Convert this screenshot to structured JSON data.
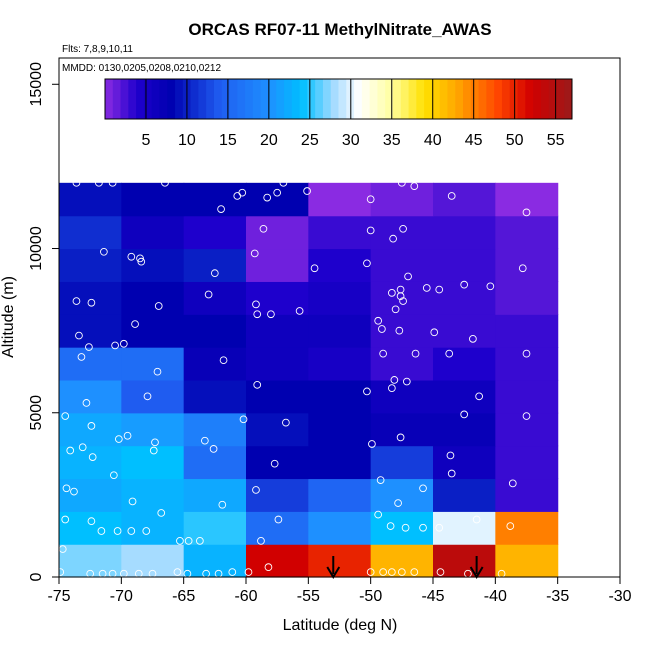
{
  "chart_data": {
    "type": "heatmap",
    "title": "ORCAS RF07-11 MethylNitrate_AWAS",
    "subtitle_flights": "Flts: 7,8,9,10,11",
    "subtitle_dates": "MMDD: 0130,0205,0208,0210,0212",
    "xlabel": "Latitude (deg N)",
    "ylabel": "Altitude (m)",
    "xlim": [
      -75,
      -30
    ],
    "ylim": [
      0,
      15800
    ],
    "x_ticks": [
      -75,
      -70,
      -65,
      -60,
      -55,
      -50,
      -45,
      -40,
      -35,
      -30
    ],
    "y_ticks": [
      0,
      5000,
      10000,
      15000
    ],
    "x_bin_edges": [
      -75,
      -70,
      -65,
      -60,
      -55,
      -50,
      -45,
      -40,
      -35
    ],
    "y_bin_edges": [
      0,
      1000,
      2000,
      3000,
      4000,
      5000,
      6000,
      7000,
      8000,
      9000,
      10000,
      11000,
      12000
    ],
    "colorbar": {
      "min": 0,
      "max": 57,
      "ticks": [
        5,
        10,
        15,
        20,
        25,
        30,
        35,
        40,
        45,
        50,
        55
      ],
      "stops": [
        {
          "v": 0,
          "c": "#8a2be2"
        },
        {
          "v": 4,
          "c": "#1e00cc"
        },
        {
          "v": 8,
          "c": "#0000b0"
        },
        {
          "v": 14,
          "c": "#1f5cf0"
        },
        {
          "v": 20,
          "c": "#1e90ff"
        },
        {
          "v": 24,
          "c": "#00bfff"
        },
        {
          "v": 28,
          "c": "#a6dcff"
        },
        {
          "v": 31,
          "c": "#ffffff"
        },
        {
          "v": 35,
          "c": "#ffffa0"
        },
        {
          "v": 39,
          "c": "#ffe000"
        },
        {
          "v": 43,
          "c": "#ffa500"
        },
        {
          "v": 48,
          "c": "#ff4500"
        },
        {
          "v": 52,
          "c": "#d10000"
        },
        {
          "v": 57,
          "c": "#9b1b1b"
        }
      ]
    },
    "grid_values": [
      [
        27,
        28,
        23,
        52,
        50,
        42,
        54,
        42
      ],
      [
        24,
        23,
        25,
        16,
        20,
        24,
        30,
        45
      ],
      [
        22,
        23,
        22,
        12,
        15,
        20,
        10,
        3
      ],
      [
        23,
        24,
        16,
        8,
        8,
        12,
        6,
        3
      ],
      [
        22,
        21,
        18,
        9,
        8,
        7,
        7,
        3
      ],
      [
        20,
        14,
        9,
        8,
        8,
        6,
        6,
        3
      ],
      [
        16,
        16,
        7,
        6,
        5,
        3,
        4,
        3
      ],
      [
        9,
        8,
        8,
        6,
        6,
        3,
        3,
        3
      ],
      [
        9,
        8,
        6,
        4,
        5,
        3,
        3,
        2
      ],
      [
        10,
        9,
        10,
        1,
        4,
        3,
        3,
        2
      ],
      [
        11,
        6,
        4,
        1,
        3,
        3,
        3,
        2
      ],
      [
        9,
        8,
        8,
        8,
        0,
        1,
        2,
        0
      ]
    ],
    "samples": [
      [
        -74.9,
        150
      ],
      [
        -74.7,
        850
      ],
      [
        -74.5,
        1750
      ],
      [
        -74.4,
        2700
      ],
      [
        -74.1,
        3850
      ],
      [
        -74.5,
        4900
      ],
      [
        -72.5,
        100
      ],
      [
        -71.5,
        100
      ],
      [
        -70.7,
        100
      ],
      [
        -69.8,
        100
      ],
      [
        -68.6,
        100
      ],
      [
        -67.5,
        100
      ],
      [
        -65.5,
        150
      ],
      [
        -64.7,
        100
      ],
      [
        -63.2,
        100
      ],
      [
        -62.2,
        100
      ],
      [
        -61.1,
        150
      ],
      [
        -59.8,
        150
      ],
      [
        -58.2,
        300
      ],
      [
        -50.0,
        150
      ],
      [
        -49.0,
        150
      ],
      [
        -48.3,
        150
      ],
      [
        -47.5,
        150
      ],
      [
        -46.5,
        150
      ],
      [
        -44.4,
        150
      ],
      [
        -42.2,
        100
      ],
      [
        -39.5,
        100
      ],
      [
        -72.4,
        1700
      ],
      [
        -71.6,
        1400
      ],
      [
        -70.3,
        1400
      ],
      [
        -69.2,
        1400
      ],
      [
        -68.0,
        1400
      ],
      [
        -66.8,
        1950
      ],
      [
        -65.3,
        1100
      ],
      [
        -64.6,
        1100
      ],
      [
        -63.7,
        1100
      ],
      [
        -61.9,
        2200
      ],
      [
        -58.8,
        1100
      ],
      [
        -57.4,
        1750
      ],
      [
        -49.4,
        1900
      ],
      [
        -48.4,
        1550
      ],
      [
        -47.2,
        1500
      ],
      [
        -45.8,
        1500
      ],
      [
        -44.5,
        1500
      ],
      [
        -41.5,
        1750
      ],
      [
        -38.8,
        1550
      ],
      [
        -73.8,
        2600
      ],
      [
        -72.3,
        3650
      ],
      [
        -70.6,
        3100
      ],
      [
        -69.1,
        2300
      ],
      [
        -67.4,
        3850
      ],
      [
        -62.6,
        3900
      ],
      [
        -59.2,
        2650
      ],
      [
        -57.7,
        3450
      ],
      [
        -49.2,
        2950
      ],
      [
        -47.8,
        2250
      ],
      [
        -45.8,
        2700
      ],
      [
        -43.5,
        3150
      ],
      [
        -38.6,
        2850
      ],
      [
        -37.5,
        4900
      ],
      [
        -73.1,
        3950
      ],
      [
        -72.4,
        4600
      ],
      [
        -70.2,
        4200
      ],
      [
        -69.5,
        4300
      ],
      [
        -67.3,
        4100
      ],
      [
        -63.3,
        4150
      ],
      [
        -60.2,
        4800
      ],
      [
        -56.8,
        4700
      ],
      [
        -49.9,
        4050
      ],
      [
        -47.6,
        4250
      ],
      [
        -43.6,
        3700
      ],
      [
        -42.5,
        4950
      ],
      [
        -72.8,
        5300
      ],
      [
        -67.9,
        5500
      ],
      [
        -59.1,
        5850
      ],
      [
        -50.3,
        5650
      ],
      [
        -48.3,
        5750
      ],
      [
        -48.1,
        6000
      ],
      [
        -47.1,
        5950
      ],
      [
        -41.3,
        5500
      ],
      [
        -73.2,
        6700
      ],
      [
        -70.5,
        7050
      ],
      [
        -69.8,
        7100
      ],
      [
        -67.1,
        6250
      ],
      [
        -61.8,
        6600
      ],
      [
        -49.0,
        6800
      ],
      [
        -46.4,
        6800
      ],
      [
        -43.7,
        6800
      ],
      [
        -41.8,
        7250
      ],
      [
        -37.5,
        6800
      ],
      [
        -73.4,
        7350
      ],
      [
        -72.6,
        7000
      ],
      [
        -68.9,
        7700
      ],
      [
        -49.4,
        7800
      ],
      [
        -49.1,
        7550
      ],
      [
        -47.7,
        7500
      ],
      [
        -44.9,
        7450
      ],
      [
        -73.6,
        8400
      ],
      [
        -72.4,
        8350
      ],
      [
        -68.4,
        9600
      ],
      [
        -67.0,
        8250
      ],
      [
        -63.0,
        8600
      ],
      [
        -59.2,
        8300
      ],
      [
        -59.1,
        8000
      ],
      [
        -58.0,
        8000
      ],
      [
        -55.7,
        8100
      ],
      [
        -48.0,
        8150
      ],
      [
        -48.3,
        8650
      ],
      [
        -47.6,
        8550
      ],
      [
        -47.6,
        8750
      ],
      [
        -47.4,
        8400
      ],
      [
        -45.5,
        8800
      ],
      [
        -44.5,
        8750
      ],
      [
        -42.5,
        8900
      ],
      [
        -40.4,
        8850
      ],
      [
        -37.8,
        9400
      ],
      [
        -71.4,
        9900
      ],
      [
        -69.2,
        9750
      ],
      [
        -68.5,
        9700
      ],
      [
        -62.5,
        9250
      ],
      [
        -59.3,
        9850
      ],
      [
        -58.6,
        10600
      ],
      [
        -54.5,
        9400
      ],
      [
        -50.3,
        9550
      ],
      [
        -50.0,
        10550
      ],
      [
        -47.4,
        10600
      ],
      [
        -47.0,
        9150
      ],
      [
        -48.2,
        10300
      ],
      [
        -73.6,
        12000
      ],
      [
        -70.7,
        12000
      ],
      [
        -71.8,
        12000
      ],
      [
        -66.5,
        12000
      ],
      [
        -62.0,
        11200
      ],
      [
        -60.7,
        11600
      ],
      [
        -60.3,
        11700
      ],
      [
        -58.3,
        11550
      ],
      [
        -57.5,
        11700
      ],
      [
        -57.0,
        12000
      ],
      [
        -55.1,
        11750
      ],
      [
        -50.0,
        11500
      ],
      [
        -47.5,
        12000
      ],
      [
        -46.5,
        11900
      ],
      [
        -43.5,
        11600
      ],
      [
        -37.5,
        11100
      ]
    ],
    "arrows": [
      -53.0,
      -41.5
    ],
    "grid": false
  }
}
